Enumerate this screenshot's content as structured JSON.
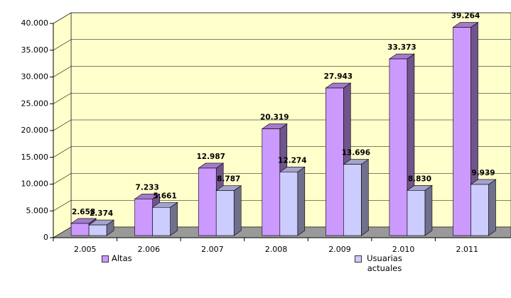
{
  "chart_data": {
    "type": "bar3d",
    "categories": [
      "2.005",
      "2.006",
      "2.007",
      "2.008",
      "2.009",
      "2.010",
      "2.011"
    ],
    "series": [
      {
        "name": "Altas",
        "color": "#cc99ff",
        "values": [
          2658,
          7233,
          12987,
          20319,
          27943,
          33373,
          39264
        ],
        "value_labels": [
          "2.658",
          "7.233",
          "12.987",
          "20.319",
          "27.943",
          "33.373",
          "39.264"
        ]
      },
      {
        "name": "Usuarias actuales",
        "color": "#ccccff",
        "values": [
          2374,
          5661,
          8787,
          12274,
          13696,
          8830,
          9939
        ],
        "value_labels": [
          "2.374",
          "5.661",
          "8.787",
          "12.274",
          "13.696",
          "8.830",
          "9.939"
        ]
      }
    ],
    "ylim": [
      0,
      40000
    ],
    "yticks": [
      0,
      {
        "value": 5000,
        "label": "5.000"
      },
      {
        "value": 10000,
        "label": "10.000"
      },
      {
        "value": 15000,
        "label": "15.000"
      },
      {
        "value": 20000,
        "label": "20.000"
      },
      {
        "value": 25000,
        "label": "25.000"
      },
      {
        "value": 30000,
        "label": "30.000"
      },
      {
        "value": 35000,
        "label": "35.000"
      },
      {
        "value": 40000,
        "label": "40.000"
      }
    ],
    "grid": true,
    "legend": "bottom"
  }
}
